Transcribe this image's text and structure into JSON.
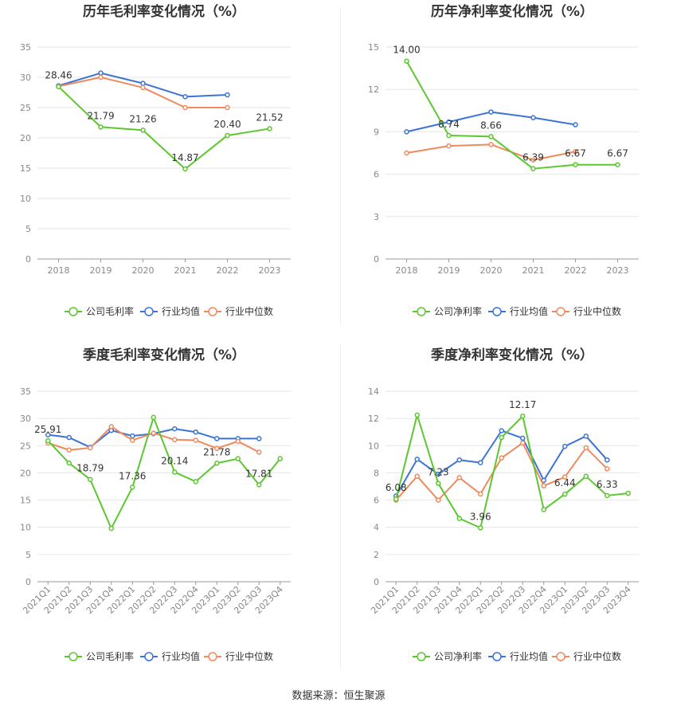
{
  "colors": {
    "company": "#5cc72e",
    "industry_avg": "#3b74d6",
    "industry_median": "#f08a5d",
    "grid": "#e6e6e6",
    "axis": "#999999"
  },
  "legend": [
    "公司毛利率",
    "行业均值",
    "行业中位数"
  ],
  "footer": "数据来源：恒生聚源",
  "chart_data": [
    {
      "type": "line",
      "title": "历年毛利率变化情况（%）",
      "categories": [
        "2018",
        "2019",
        "2020",
        "2021",
        "2022",
        "2023"
      ],
      "ylim": [
        0,
        35
      ],
      "yticks": [
        0,
        5,
        10,
        15,
        20,
        25,
        30,
        35
      ],
      "legend": [
        "公司毛利率",
        "行业均值",
        "行业中位数"
      ],
      "series": [
        {
          "name": "公司毛利率",
          "values": [
            28.46,
            21.79,
            21.26,
            14.87,
            20.4,
            21.52
          ]
        },
        {
          "name": "行业均值",
          "values": [
            28.6,
            30.7,
            29.0,
            26.8,
            27.1,
            null
          ]
        },
        {
          "name": "行业中位数",
          "values": [
            28.5,
            30.0,
            28.3,
            25.0,
            25.0,
            null
          ]
        }
      ],
      "labels": [
        {
          "i": 0,
          "text": "28.46"
        },
        {
          "i": 1,
          "text": "21.79"
        },
        {
          "i": 2,
          "text": "21.26"
        },
        {
          "i": 3,
          "text": "14.87"
        },
        {
          "i": 4,
          "text": "20.40"
        },
        {
          "i": 5,
          "text": "21.52"
        }
      ]
    },
    {
      "type": "line",
      "title": "历年净利率变化情况（%）",
      "categories": [
        "2018",
        "2019",
        "2020",
        "2021",
        "2022",
        "2023"
      ],
      "ylim": [
        0,
        15
      ],
      "yticks": [
        0,
        3,
        6,
        9,
        12,
        15
      ],
      "legend": [
        "公司净利率",
        "行业均值",
        "行业中位数"
      ],
      "series": [
        {
          "name": "公司净利率",
          "values": [
            14.0,
            8.74,
            8.66,
            6.39,
            6.67,
            6.67
          ]
        },
        {
          "name": "行业均值",
          "values": [
            9.0,
            9.7,
            10.4,
            10.0,
            9.5,
            null
          ]
        },
        {
          "name": "行业中位数",
          "values": [
            7.5,
            8.0,
            8.1,
            7.0,
            7.6,
            null
          ]
        }
      ],
      "labels": [
        {
          "i": 0,
          "text": "14.00"
        },
        {
          "i": 1,
          "text": "8.74"
        },
        {
          "i": 2,
          "text": "8.66"
        },
        {
          "i": 3,
          "text": "6.39"
        },
        {
          "i": 4,
          "text": "6.67"
        },
        {
          "i": 5,
          "text": "6.67"
        }
      ]
    },
    {
      "type": "line",
      "title": "季度毛利率变化情况（%）",
      "categories": [
        "2021Q1",
        "2021Q2",
        "2021Q3",
        "2021Q4",
        "2022Q1",
        "2022Q2",
        "2022Q3",
        "2022Q4",
        "2023Q1",
        "2023Q2",
        "2023Q3",
        "2023Q4"
      ],
      "ylim": [
        0,
        35
      ],
      "yticks": [
        0,
        5,
        10,
        15,
        20,
        25,
        30,
        35
      ],
      "legend": [
        "公司毛利率",
        "行业均值",
        "行业中位数"
      ],
      "series": [
        {
          "name": "公司毛利率",
          "values": [
            25.91,
            21.8,
            18.79,
            9.8,
            17.36,
            30.2,
            20.14,
            18.4,
            21.78,
            22.6,
            17.81,
            22.6
          ]
        },
        {
          "name": "行业均值",
          "values": [
            27.0,
            26.5,
            24.7,
            27.8,
            26.8,
            27.2,
            28.1,
            27.5,
            26.3,
            26.3,
            26.3,
            null
          ]
        },
        {
          "name": "行业中位数",
          "values": [
            25.5,
            24.2,
            24.6,
            28.5,
            26.0,
            27.3,
            26.1,
            26.0,
            24.5,
            25.8,
            23.8,
            null
          ]
        }
      ],
      "labels": [
        {
          "i": 0,
          "text": "25.91"
        },
        {
          "i": 2,
          "text": "18.79"
        },
        {
          "i": 4,
          "text": "17.36"
        },
        {
          "i": 6,
          "text": "20.14"
        },
        {
          "i": 8,
          "text": "21.78"
        },
        {
          "i": 10,
          "text": "17.81"
        }
      ]
    },
    {
      "type": "line",
      "title": "季度净利率变化情况（%）",
      "categories": [
        "2021Q1",
        "2021Q2",
        "2021Q3",
        "2021Q4",
        "2022Q1",
        "2022Q2",
        "2022Q3",
        "2022Q4",
        "2023Q1",
        "2023Q2",
        "2023Q3",
        "2023Q4"
      ],
      "ylim": [
        0,
        14
      ],
      "yticks": [
        0,
        2,
        4,
        6,
        8,
        10,
        12,
        14
      ],
      "legend": [
        "公司净利率",
        "行业均值",
        "行业中位数"
      ],
      "series": [
        {
          "name": "公司净利率",
          "values": [
            6.08,
            12.25,
            7.23,
            4.65,
            3.96,
            10.6,
            12.17,
            5.3,
            6.44,
            7.75,
            6.33,
            6.5
          ]
        },
        {
          "name": "行业均值",
          "values": [
            6.3,
            9.0,
            7.9,
            8.95,
            8.75,
            11.1,
            10.55,
            7.45,
            9.95,
            10.7,
            8.95,
            null
          ]
        },
        {
          "name": "行业中位数",
          "values": [
            6.0,
            7.75,
            6.0,
            7.65,
            6.45,
            9.1,
            10.2,
            7.05,
            7.7,
            9.85,
            8.3,
            null
          ]
        }
      ],
      "labels": [
        {
          "i": 0,
          "text": "6.08"
        },
        {
          "i": 2,
          "text": "7.23"
        },
        {
          "i": 4,
          "text": "3.96"
        },
        {
          "i": 6,
          "text": "12.17"
        },
        {
          "i": 8,
          "text": "6.44"
        },
        {
          "i": 10,
          "text": "6.33"
        }
      ]
    }
  ]
}
